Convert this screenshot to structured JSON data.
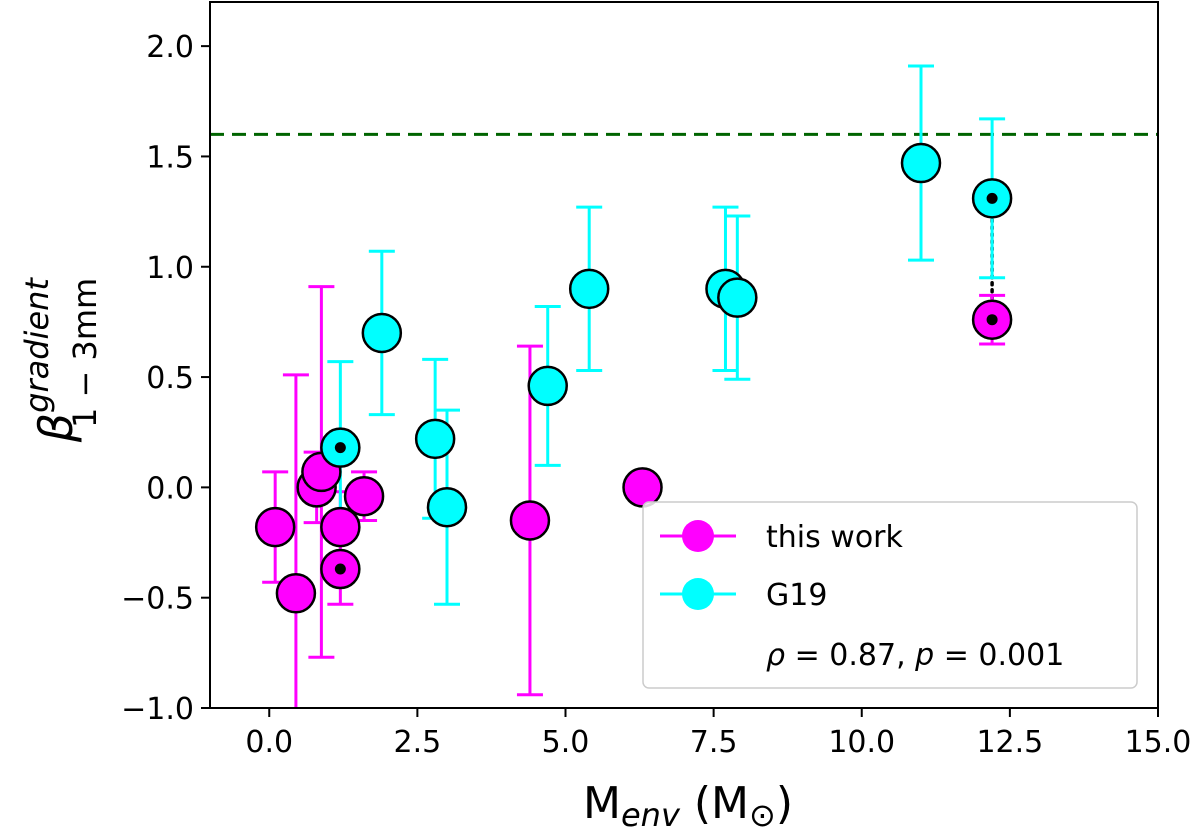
{
  "chart_data": {
    "type": "scatter",
    "xlabel": {
      "main": "M",
      "sub": "env",
      "unit_open": " (M",
      "unit_sym": "⊙",
      "unit_close": ")"
    },
    "ylabel": {
      "main": "β",
      "sup": "gradient",
      "sub": "1 − 3mm"
    },
    "xlim": [
      -1.0,
      15.0
    ],
    "ylim": [
      -1.0,
      2.2
    ],
    "xticks": [
      0.0,
      2.5,
      5.0,
      7.5,
      10.0,
      12.5,
      15.0
    ],
    "xtick_labels": [
      "0.0",
      "2.5",
      "5.0",
      "7.5",
      "10.0",
      "12.5",
      "15.0"
    ],
    "yticks": [
      -1.0,
      -0.5,
      0.0,
      0.5,
      1.0,
      1.5,
      2.0
    ],
    "ytick_labels": [
      "−1.0",
      "−0.5",
      "0.0",
      "0.5",
      "1.0",
      "1.5",
      "2.0"
    ],
    "reference_line": {
      "y": 1.6,
      "color": "#006400",
      "style": "dashed"
    },
    "series": [
      {
        "name": "this work",
        "color": "#ff00ff",
        "points": [
          {
            "x": 0.1,
            "y": -0.18,
            "yerr_low": 0.25,
            "yerr_high": 0.25
          },
          {
            "x": 0.45,
            "y": -0.48,
            "yerr_low": 0.6,
            "yerr_high": 0.99
          },
          {
            "x": 0.8,
            "y": 0.0,
            "yerr_low": 0.16,
            "yerr_high": 0.16
          },
          {
            "x": 0.88,
            "y": 0.07,
            "yerr_low": 0.84,
            "yerr_high": 0.84
          },
          {
            "x": 1.2,
            "y": -0.18,
            "yerr_low": 0.16,
            "yerr_high": 0.16
          },
          {
            "x": 1.2,
            "y": -0.37,
            "yerr_low": 0.16,
            "yerr_high": 0.16,
            "marked": true
          },
          {
            "x": 1.6,
            "y": -0.04,
            "yerr_low": 0.11,
            "yerr_high": 0.11
          },
          {
            "x": 4.4,
            "y": -0.15,
            "yerr_low": 0.79,
            "yerr_high": 0.79
          },
          {
            "x": 6.3,
            "y": 0.0
          },
          {
            "x": 12.2,
            "y": 0.76,
            "yerr_low": 0.11,
            "yerr_high": 0.11,
            "marked": true
          }
        ]
      },
      {
        "name": "G19",
        "color": "#00ffff",
        "points": [
          {
            "x": 1.2,
            "y": 0.18,
            "yerr_low": 0.39,
            "yerr_high": 0.39,
            "marked": true
          },
          {
            "x": 1.9,
            "y": 0.7,
            "yerr_low": 0.37,
            "yerr_high": 0.37
          },
          {
            "x": 2.8,
            "y": 0.22,
            "yerr_low": 0.36,
            "yerr_high": 0.36
          },
          {
            "x": 3.0,
            "y": -0.09,
            "yerr_low": 0.44,
            "yerr_high": 0.44
          },
          {
            "x": 4.7,
            "y": 0.46,
            "yerr_low": 0.36,
            "yerr_high": 0.36
          },
          {
            "x": 5.4,
            "y": 0.9,
            "yerr_low": 0.37,
            "yerr_high": 0.37
          },
          {
            "x": 7.7,
            "y": 0.9,
            "yerr_low": 0.37,
            "yerr_high": 0.37
          },
          {
            "x": 7.9,
            "y": 0.86,
            "yerr_low": 0.37,
            "yerr_high": 0.37
          },
          {
            "x": 11.0,
            "y": 1.47,
            "yerr_low": 0.44,
            "yerr_high": 0.44
          },
          {
            "x": 12.2,
            "y": 1.31,
            "yerr_low": 0.36,
            "yerr_high": 0.36,
            "marked": true
          }
        ]
      }
    ],
    "connector": {
      "x": 12.2,
      "y_from": 0.76,
      "y_to": 1.31,
      "style": "dotted"
    },
    "legend": {
      "position": "lower-right",
      "entries": [
        "this work",
        "G19"
      ],
      "stat": {
        "rho_symbol": "ρ",
        "rho_value": "0.87",
        "p_symbol": "p",
        "p_value": "0.001"
      }
    }
  }
}
